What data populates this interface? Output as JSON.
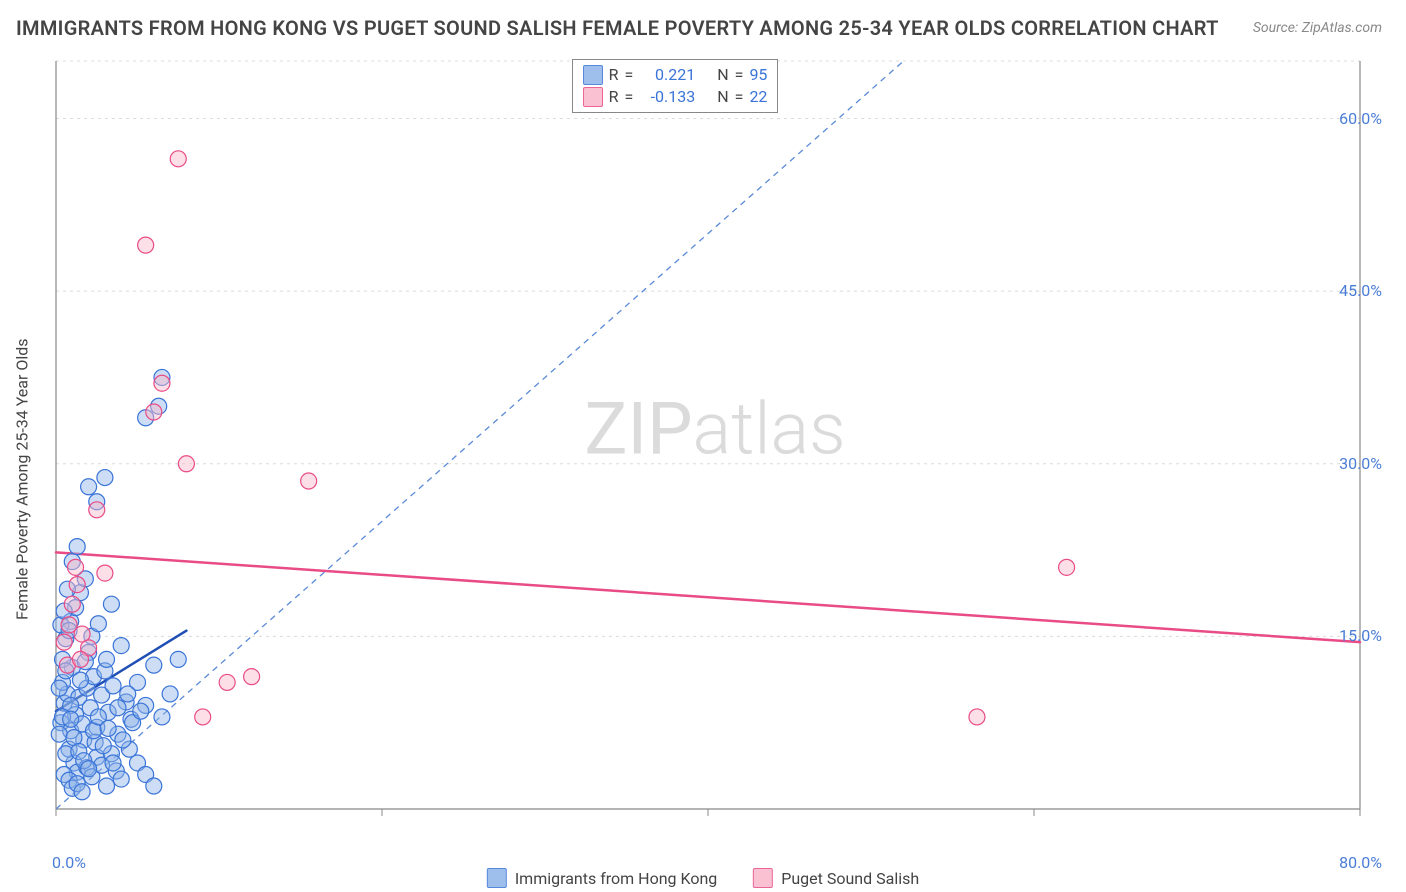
{
  "title": "IMMIGRANTS FROM HONG KONG VS PUGET SOUND SALISH FEMALE POVERTY AMONG 25-34 YEAR OLDS CORRELATION CHART",
  "source": "Source: ZipAtlas.com",
  "watermark_left": "ZIP",
  "watermark_right": "atlas",
  "y_axis_label": "Female Poverty Among 25-34 Year Olds",
  "chart": {
    "type": "scatter",
    "background_color": "#ffffff",
    "grid_color": "#dcdcdc",
    "axis_color": "#888888",
    "xlim": [
      0,
      80
    ],
    "ylim": [
      0,
      65
    ],
    "x_ticks": [
      0,
      20,
      40,
      60,
      80
    ],
    "x_tick_labels": [
      "0.0%",
      "",
      "",
      "",
      "80.0%"
    ],
    "y_ticks": [
      15,
      30,
      45,
      60
    ],
    "y_tick_labels": [
      "15.0%",
      "30.0%",
      "45.0%",
      "60.0%"
    ],
    "tick_label_color": "#4a7dd6",
    "tick_fontsize": 16,
    "marker_radius": 8,
    "marker_stroke_width": 1.2,
    "series": [
      {
        "name": "Immigrants from Hong Kong",
        "fill": "#8eb4e9",
        "fill_opacity": 0.45,
        "stroke": "#3a74d8",
        "trend": {
          "x1": 0,
          "y1": 8.5,
          "x2": 8,
          "y2": 15.5,
          "color": "#1f4fb5",
          "width": 2.5
        },
        "r_value": "0.221",
        "n_value": "95",
        "points": [
          [
            0.3,
            7.5
          ],
          [
            0.5,
            9.2
          ],
          [
            0.7,
            10.0
          ],
          [
            0.4,
            11.0
          ],
          [
            0.9,
            6.8
          ],
          [
            1.2,
            8.2
          ],
          [
            1.0,
            12.3
          ],
          [
            1.4,
            9.7
          ],
          [
            1.6,
            7.4
          ],
          [
            0.8,
            5.2
          ],
          [
            1.1,
            4.0
          ],
          [
            1.3,
            3.2
          ],
          [
            1.7,
            6.0
          ],
          [
            1.9,
            10.5
          ],
          [
            2.1,
            8.8
          ],
          [
            2.3,
            11.5
          ],
          [
            2.5,
            7.1
          ],
          [
            2.8,
            9.9
          ],
          [
            2.0,
            13.6
          ],
          [
            2.4,
            5.8
          ],
          [
            3.0,
            12.0
          ],
          [
            3.2,
            8.4
          ],
          [
            3.5,
            10.7
          ],
          [
            3.8,
            6.5
          ],
          [
            4.0,
            14.2
          ],
          [
            4.3,
            9.3
          ],
          [
            4.6,
            7.8
          ],
          [
            0.6,
            14.8
          ],
          [
            0.9,
            16.3
          ],
          [
            1.2,
            17.5
          ],
          [
            1.5,
            18.8
          ],
          [
            1.8,
            20.0
          ],
          [
            0.7,
            19.1
          ],
          [
            2.2,
            15.0
          ],
          [
            2.6,
            16.1
          ],
          [
            3.1,
            13.0
          ],
          [
            3.4,
            17.8
          ],
          [
            1.0,
            21.5
          ],
          [
            1.3,
            22.8
          ],
          [
            5.0,
            11.0
          ],
          [
            5.5,
            9.0
          ],
          [
            6.0,
            12.5
          ],
          [
            6.5,
            8.0
          ],
          [
            7.0,
            10.0
          ],
          [
            7.5,
            13.0
          ],
          [
            2.0,
            28.0
          ],
          [
            3.0,
            28.8
          ],
          [
            2.5,
            26.7
          ],
          [
            5.5,
            34.0
          ],
          [
            6.3,
            35.0
          ],
          [
            6.5,
            37.5
          ],
          [
            0.5,
            3.0
          ],
          [
            0.8,
            2.5
          ],
          [
            1.0,
            1.8
          ],
          [
            1.3,
            2.2
          ],
          [
            1.6,
            1.5
          ],
          [
            1.9,
            3.6
          ],
          [
            2.2,
            2.8
          ],
          [
            2.5,
            4.5
          ],
          [
            2.8,
            3.8
          ],
          [
            3.1,
            2.0
          ],
          [
            3.4,
            4.8
          ],
          [
            3.7,
            3.3
          ],
          [
            4.0,
            2.6
          ],
          [
            4.5,
            5.2
          ],
          [
            5.0,
            4.0
          ],
          [
            5.5,
            3.0
          ],
          [
            6.0,
            2.0
          ],
          [
            0.4,
            13.0
          ],
          [
            0.6,
            12.0
          ],
          [
            0.2,
            10.5
          ],
          [
            0.9,
            9.0
          ],
          [
            1.5,
            11.2
          ],
          [
            1.8,
            12.8
          ],
          [
            0.3,
            16.0
          ],
          [
            0.5,
            17.2
          ],
          [
            0.8,
            15.5
          ],
          [
            0.4,
            8.0
          ],
          [
            0.2,
            6.5
          ],
          [
            0.6,
            4.8
          ],
          [
            0.9,
            7.8
          ],
          [
            1.1,
            6.2
          ],
          [
            1.4,
            5.0
          ],
          [
            1.7,
            4.2
          ],
          [
            2.0,
            3.5
          ],
          [
            2.3,
            6.8
          ],
          [
            2.6,
            8.0
          ],
          [
            2.9,
            5.5
          ],
          [
            3.2,
            7.0
          ],
          [
            3.5,
            4.0
          ],
          [
            3.8,
            8.8
          ],
          [
            4.1,
            6.0
          ],
          [
            4.4,
            10.0
          ],
          [
            4.7,
            7.5
          ],
          [
            5.2,
            8.5
          ]
        ]
      },
      {
        "name": "Puget Sound Salish",
        "fill": "#f8b7c9",
        "fill_opacity": 0.45,
        "stroke": "#e94b86",
        "trend": {
          "x1": 0,
          "y1": 22.3,
          "x2": 80,
          "y2": 14.5,
          "color": "#e94b86",
          "width": 2.5
        },
        "r_value": "-0.133",
        "n_value": "22",
        "points": [
          [
            0.5,
            14.5
          ],
          [
            0.8,
            16.0
          ],
          [
            1.0,
            17.8
          ],
          [
            1.3,
            19.5
          ],
          [
            1.6,
            15.2
          ],
          [
            1.2,
            21.0
          ],
          [
            2.5,
            26.0
          ],
          [
            2.0,
            14.0
          ],
          [
            3.0,
            20.5
          ],
          [
            6.0,
            34.5
          ],
          [
            6.5,
            37.0
          ],
          [
            8.0,
            30.0
          ],
          [
            7.5,
            56.5
          ],
          [
            5.5,
            49.0
          ],
          [
            9.0,
            8.0
          ],
          [
            10.5,
            11.0
          ],
          [
            12.0,
            11.5
          ],
          [
            15.5,
            28.5
          ],
          [
            56.5,
            8.0
          ],
          [
            62.0,
            21.0
          ],
          [
            0.7,
            12.5
          ],
          [
            1.5,
            13.0
          ]
        ]
      }
    ],
    "reference_line": {
      "x1": 0,
      "y1": 0,
      "x2": 52,
      "y2": 65,
      "color": "#5a8ad6",
      "dash": "6,5",
      "width": 1.3
    }
  },
  "legend_top": {
    "r_label": "R",
    "eq": "=",
    "n_label": "N"
  },
  "legend_bottom": {
    "series1_label": "Immigrants from Hong Kong",
    "series2_label": "Puget Sound Salish"
  }
}
